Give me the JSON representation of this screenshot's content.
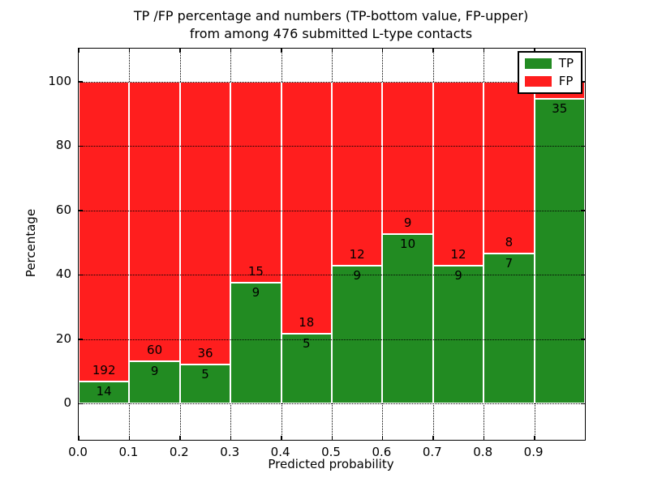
{
  "title": {
    "line1": "TP /FP percentage and numbers (TP-bottom value, FP-upper)",
    "line2": "from among 476 submitted L-type contacts"
  },
  "axes": {
    "xlabel": "Predicted probability",
    "ylabel": "Percentage",
    "x_ticks": [
      {
        "v": 0.0,
        "label": "0.0"
      },
      {
        "v": 0.1,
        "label": "0.1"
      },
      {
        "v": 0.2,
        "label": "0.2"
      },
      {
        "v": 0.3,
        "label": "0.3"
      },
      {
        "v": 0.4,
        "label": "0.4"
      },
      {
        "v": 0.5,
        "label": "0.5"
      },
      {
        "v": 0.6,
        "label": "0.6"
      },
      {
        "v": 0.7,
        "label": "0.7"
      },
      {
        "v": 0.8,
        "label": "0.8"
      },
      {
        "v": 0.9,
        "label": "0.9"
      },
      {
        "v": 1.0,
        "label": ""
      }
    ],
    "y_ticks": [
      {
        "v": 0,
        "label": "0"
      },
      {
        "v": 20,
        "label": "20"
      },
      {
        "v": 40,
        "label": "40"
      },
      {
        "v": 60,
        "label": "60"
      },
      {
        "v": 80,
        "label": "80"
      },
      {
        "v": 100,
        "label": "100"
      }
    ]
  },
  "legend": {
    "items": [
      {
        "label": "TP",
        "color": "#228B22"
      },
      {
        "label": "FP",
        "color": "#FF1E1E"
      }
    ]
  },
  "colors": {
    "tp": "#228B22",
    "fp": "#FF1E1E",
    "grid": "#000000",
    "frame": "#000000",
    "background": "#ffffff"
  },
  "chart_data": {
    "type": "bar",
    "stacked": true,
    "normalized": "each bin stacked to 100%",
    "title": "TP /FP percentage and numbers (TP-bottom value, FP-upper) from among 476 submitted L-type contacts",
    "xlabel": "Predicted probability",
    "ylabel": "Percentage",
    "xlim": [
      0,
      1
    ],
    "ylim": [
      -11.3,
      110.3
    ],
    "grid": true,
    "legend_position": "upper right",
    "total_contacts": 476,
    "bin_width": 0.1,
    "categories": [
      "0.0-0.1",
      "0.1-0.2",
      "0.2-0.3",
      "0.3-0.4",
      "0.4-0.5",
      "0.5-0.6",
      "0.6-0.7",
      "0.7-0.8",
      "0.8-0.9",
      "0.9-1.0"
    ],
    "series": [
      {
        "name": "TP",
        "color": "#228B22",
        "counts": [
          14,
          9,
          5,
          9,
          5,
          9,
          10,
          9,
          7,
          35
        ],
        "pct": [
          6.8,
          13.0,
          12.2,
          37.5,
          21.7,
          42.9,
          52.6,
          42.9,
          46.7,
          94.6
        ]
      },
      {
        "name": "FP",
        "color": "#FF1E1E",
        "counts": [
          192,
          60,
          36,
          15,
          18,
          12,
          9,
          12,
          8,
          2
        ],
        "pct": [
          93.2,
          87.0,
          87.8,
          62.5,
          78.3,
          57.1,
          47.4,
          57.1,
          53.3,
          5.4
        ]
      }
    ],
    "bar_labels": {
      "tp": [
        "14",
        "9",
        "5",
        "9",
        "5",
        "9",
        "10",
        "9",
        "7",
        "35"
      ],
      "fp": [
        "192",
        "60",
        "36",
        "15",
        "18",
        "12",
        "9",
        "12",
        "8",
        ""
      ],
      "fp_last_label_hidden_behind_legend": true
    }
  }
}
